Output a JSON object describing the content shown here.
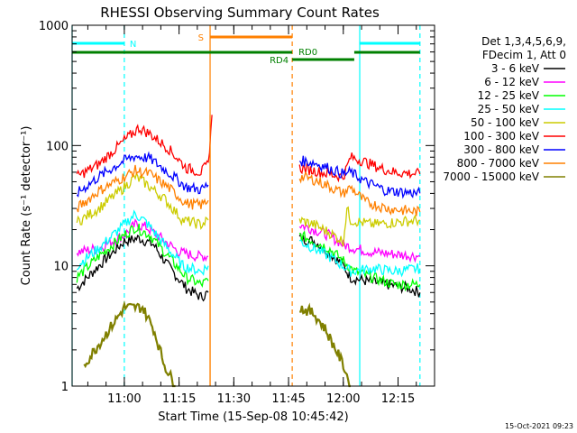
{
  "chart_data": {
    "type": "line",
    "title": "RHESSI Observing Summary Count Rates",
    "xlabel": "Start Time (15-Sep-08 10:45:42)",
    "ylabel": "Count Rate (s⁻¹ detector⁻¹)",
    "footer_date": "15-Oct-2021 09:23",
    "y_scale": "log",
    "ylim": [
      1,
      1000
    ],
    "xlim": [
      "10:45:42",
      "12:25:00"
    ],
    "y_ticks": [
      {
        "v": 1,
        "label": "1"
      },
      {
        "v": 10,
        "label": "10"
      },
      {
        "v": 100,
        "label": "100"
      },
      {
        "v": 1000,
        "label": "1000"
      }
    ],
    "x_ticks": [
      "11:00",
      "11:15",
      "11:30",
      "11:45",
      "12:00",
      "12:15"
    ],
    "legend_header": [
      "Det 1,3,4,5,6,9,",
      "FDecim 1, Att 0"
    ],
    "legend_position": "top-right",
    "series": [
      {
        "name": "3 - 6 keV",
        "color": "#000000",
        "seg1": [
          [
            "10:47",
            6.5
          ],
          [
            "10:53",
            10
          ],
          [
            "11:00",
            16
          ],
          [
            "11:04",
            17
          ],
          [
            "11:08",
            15
          ],
          [
            "11:12",
            10
          ],
          [
            "11:17",
            6.5
          ],
          [
            "11:21",
            5.5
          ],
          [
            "11:23",
            6
          ]
        ],
        "seg2": [
          [
            "11:48",
            17
          ],
          [
            "11:52",
            16
          ],
          [
            "11:56",
            13
          ],
          [
            "12:00",
            10
          ],
          [
            "12:02",
            8
          ],
          [
            "12:06",
            7.5
          ],
          [
            "12:12",
            7
          ],
          [
            "12:18",
            6.5
          ],
          [
            "12:21",
            6
          ]
        ]
      },
      {
        "name": "6 - 12 keV",
        "color": "#ff00ff",
        "seg1": [
          [
            "10:47",
            13
          ],
          [
            "10:53",
            14
          ],
          [
            "11:00",
            18
          ],
          [
            "11:03",
            22
          ],
          [
            "11:06",
            21
          ],
          [
            "11:10",
            17
          ],
          [
            "11:15",
            13
          ],
          [
            "11:20",
            12
          ],
          [
            "11:23",
            12
          ]
        ],
        "seg2": [
          [
            "11:48",
            22
          ],
          [
            "11:52",
            20
          ],
          [
            "11:56",
            18
          ],
          [
            "12:00",
            15
          ],
          [
            "12:03",
            14
          ],
          [
            "12:08",
            13
          ],
          [
            "12:14",
            12.5
          ],
          [
            "12:21",
            12
          ]
        ]
      },
      {
        "name": "12 - 25 keV",
        "color": "#00ff00",
        "seg1": [
          [
            "10:47",
            8
          ],
          [
            "10:53",
            12
          ],
          [
            "11:00",
            18
          ],
          [
            "11:03",
            21
          ],
          [
            "11:07",
            18
          ],
          [
            "11:12",
            12
          ],
          [
            "11:17",
            8
          ],
          [
            "11:21",
            7
          ],
          [
            "11:23",
            7.5
          ]
        ],
        "seg2": [
          [
            "11:48",
            18
          ],
          [
            "11:52",
            16
          ],
          [
            "11:56",
            14
          ],
          [
            "12:00",
            11
          ],
          [
            "12:03",
            9
          ],
          [
            "12:08",
            8
          ],
          [
            "12:14",
            7
          ],
          [
            "12:21",
            7
          ]
        ]
      },
      {
        "name": "25 - 50 keV",
        "color": "#00ffff",
        "seg1": [
          [
            "10:47",
            10
          ],
          [
            "10:53",
            14
          ],
          [
            "11:00",
            22
          ],
          [
            "11:03",
            27
          ],
          [
            "11:06",
            23
          ],
          [
            "11:11",
            15
          ],
          [
            "11:16",
            10
          ],
          [
            "11:21",
            9
          ],
          [
            "11:23",
            10
          ]
        ],
        "seg2": [
          [
            "11:48",
            16
          ],
          [
            "11:52",
            14
          ],
          [
            "11:56",
            12
          ],
          [
            "12:00",
            10
          ],
          [
            "12:02",
            9
          ],
          [
            "12:08",
            9.5
          ],
          [
            "12:14",
            9
          ],
          [
            "12:21",
            9.5
          ]
        ]
      },
      {
        "name": "50 - 100 keV",
        "color": "#cccc00",
        "seg1": [
          [
            "10:47",
            23
          ],
          [
            "10:53",
            30
          ],
          [
            "11:00",
            45
          ],
          [
            "11:03",
            55
          ],
          [
            "11:06",
            48
          ],
          [
            "11:11",
            36
          ],
          [
            "11:16",
            24
          ],
          [
            "11:21",
            22
          ],
          [
            "11:23",
            24
          ]
        ],
        "seg2": [
          [
            "11:48",
            24
          ],
          [
            "11:52",
            22
          ],
          [
            "11:56",
            19
          ],
          [
            "12:00",
            16
          ],
          [
            "12:01",
            30
          ],
          [
            "12:02",
            24
          ],
          [
            "12:08",
            22
          ],
          [
            "12:14",
            23
          ],
          [
            "12:21",
            24
          ]
        ]
      },
      {
        "name": "100 - 300 keV",
        "color": "#ff0000",
        "seg1": [
          [
            "10:47",
            55
          ],
          [
            "10:53",
            70
          ],
          [
            "11:00",
            110
          ],
          [
            "11:04",
            140
          ],
          [
            "11:07",
            125
          ],
          [
            "11:12",
            95
          ],
          [
            "11:17",
            65
          ],
          [
            "11:21",
            60
          ],
          [
            "11:23",
            70
          ],
          [
            "11:24",
            180
          ]
        ],
        "seg2": [
          [
            "11:48",
            65
          ],
          [
            "11:52",
            62
          ],
          [
            "11:56",
            58
          ],
          [
            "12:00",
            55
          ],
          [
            "12:02",
            80
          ],
          [
            "12:05",
            75
          ],
          [
            "12:10",
            65
          ],
          [
            "12:14",
            60
          ],
          [
            "12:21",
            58
          ]
        ]
      },
      {
        "name": "300 - 800 keV",
        "color": "#0000ff",
        "seg1": [
          [
            "10:47",
            40
          ],
          [
            "10:53",
            55
          ],
          [
            "11:00",
            75
          ],
          [
            "11:03",
            82
          ],
          [
            "11:07",
            78
          ],
          [
            "11:12",
            60
          ],
          [
            "11:17",
            45
          ],
          [
            "11:21",
            43
          ],
          [
            "11:23",
            47
          ]
        ],
        "seg2": [
          [
            "11:48",
            75
          ],
          [
            "11:52",
            72
          ],
          [
            "11:56",
            65
          ],
          [
            "12:00",
            58
          ],
          [
            "12:02",
            60
          ],
          [
            "12:06",
            50
          ],
          [
            "12:12",
            42
          ],
          [
            "12:21",
            40
          ]
        ]
      },
      {
        "name": "800 - 7000 keV",
        "color": "#ff8000",
        "seg1": [
          [
            "10:47",
            30
          ],
          [
            "10:53",
            42
          ],
          [
            "11:00",
            55
          ],
          [
            "11:03",
            62
          ],
          [
            "11:07",
            58
          ],
          [
            "11:12",
            45
          ],
          [
            "11:17",
            33
          ],
          [
            "11:21",
            32
          ],
          [
            "11:23",
            35
          ]
        ],
        "seg2": [
          [
            "11:48",
            55
          ],
          [
            "11:52",
            52
          ],
          [
            "11:56",
            46
          ],
          [
            "12:00",
            40
          ],
          [
            "12:02",
            45
          ],
          [
            "12:06",
            34
          ],
          [
            "12:12",
            30
          ],
          [
            "12:21",
            28
          ]
        ]
      },
      {
        "name": "7000 - 15000 keV",
        "color": "#808000",
        "seg1": [
          [
            "10:49",
            1.5
          ],
          [
            "10:56",
            3
          ],
          [
            "11:00",
            4.5
          ],
          [
            "11:05",
            4.5
          ],
          [
            "11:08",
            3
          ],
          [
            "11:11",
            1.5
          ],
          [
            "11:14",
            1
          ]
        ],
        "seg2": [
          [
            "11:48",
            4.5
          ],
          [
            "11:52",
            4
          ],
          [
            "11:55",
            3
          ],
          [
            "11:58",
            2
          ],
          [
            "12:00",
            1.5
          ],
          [
            "12:02",
            1
          ]
        ]
      }
    ],
    "vertical_markers": [
      {
        "time": "10:45:42",
        "color": "#00ffff",
        "style": "solid"
      },
      {
        "time": "11:00:00",
        "color": "#00ffff",
        "style": "dashed"
      },
      {
        "time": "11:23:30",
        "color": "#ff8000",
        "style": "solid"
      },
      {
        "time": "11:46:00",
        "color": "#ff8000",
        "style": "dashed"
      },
      {
        "time": "12:04:30",
        "color": "#00ffff",
        "style": "solid"
      },
      {
        "time": "12:21:00",
        "color": "#00ffff",
        "style": "dashed"
      }
    ],
    "status_bars": [
      {
        "label": "N",
        "color": "#00ffff",
        "ranges": [
          [
            "10:45:42",
            "11:00:00"
          ],
          [
            "12:04:30",
            "12:21:00"
          ]
        ],
        "level": 1
      },
      {
        "label": "S",
        "color": "#ff8000",
        "ranges": [
          [
            "11:23:30",
            "11:46:00"
          ]
        ],
        "level": 2
      },
      {
        "label": "RD0",
        "color": "#008000",
        "ranges": [
          [
            "10:45:42",
            "11:46:00"
          ],
          [
            "12:03:00",
            "12:21:00"
          ]
        ],
        "level": 3
      },
      {
        "label": "RD4",
        "color": "#008000",
        "ranges": [
          [
            "11:46:00",
            "12:03:00"
          ]
        ],
        "level": 4
      }
    ]
  }
}
